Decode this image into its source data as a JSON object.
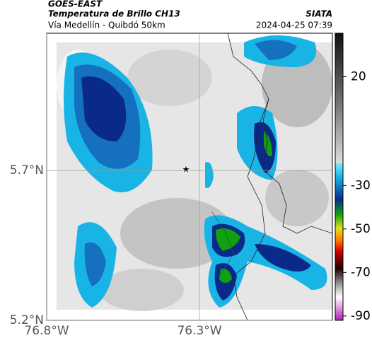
{
  "header": {
    "satellite": "GOES-EAST",
    "product": "Temperatura de Brillo CH13",
    "route": "Vía Medellín - Quibdó 50km",
    "source": "SIATA",
    "timestamp": "2024-04-25 07:39"
  },
  "map": {
    "xlim": [
      -76.8,
      -75.865
    ],
    "ylim": [
      5.2,
      6.158
    ],
    "xticks": [
      {
        "value": -76.8,
        "label": "76.8°W"
      },
      {
        "value": -76.3,
        "label": "76.3°W"
      }
    ],
    "yticks": [
      {
        "value": 5.2,
        "label": "5.2°N"
      },
      {
        "value": 5.7,
        "label": "5.7°N"
      }
    ]
  },
  "colorbar": {
    "lim": [
      -92,
      40
    ],
    "ticks": [
      20,
      -30,
      -50,
      -70,
      -90
    ]
  }
}
